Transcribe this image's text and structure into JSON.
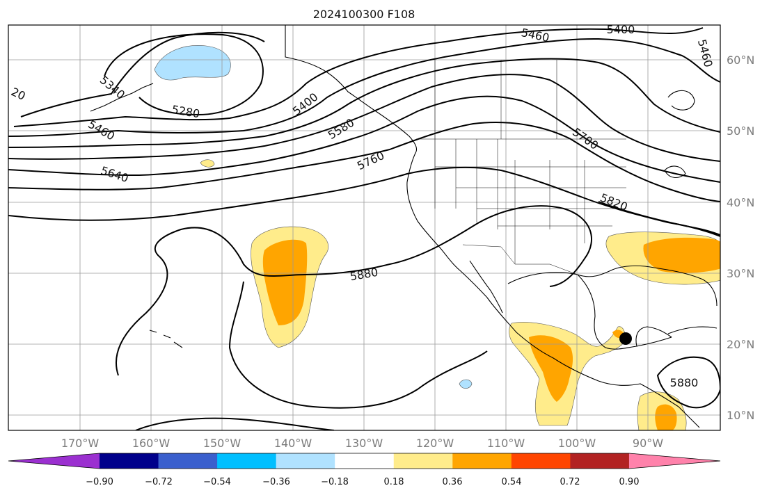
{
  "title": "2024100300 F108",
  "lon_labels": [
    "170°W",
    "160°W",
    "150°W",
    "140°W",
    "130°W",
    "120°W",
    "110°W",
    "100°W",
    "90°W"
  ],
  "lat_labels": [
    "60°N",
    "50°N",
    "40°N",
    "30°N",
    "20°N",
    "10°N"
  ],
  "contour_labels": [
    "5460",
    "5400",
    "5460",
    "5340",
    "5280",
    "20",
    "5460",
    "5400",
    "5580",
    "5700",
    "5760",
    "5640",
    "5820",
    "5880",
    "5880"
  ],
  "colorbar": {
    "ticks": [
      "−0.90",
      "−0.72",
      "−0.54",
      "−0.36",
      "−0.18",
      "0.18",
      "0.36",
      "0.54",
      "0.72",
      "0.90"
    ],
    "colors": [
      "#9b30d0",
      "#00008b",
      "#3a5fcd",
      "#00bfff",
      "#b0e2ff",
      "#ffffff",
      "#ffec8b",
      "#ffa500",
      "#ff4500",
      "#b22222",
      "#ff82ab"
    ]
  },
  "marker": {
    "name": "storm-center-dot"
  }
}
